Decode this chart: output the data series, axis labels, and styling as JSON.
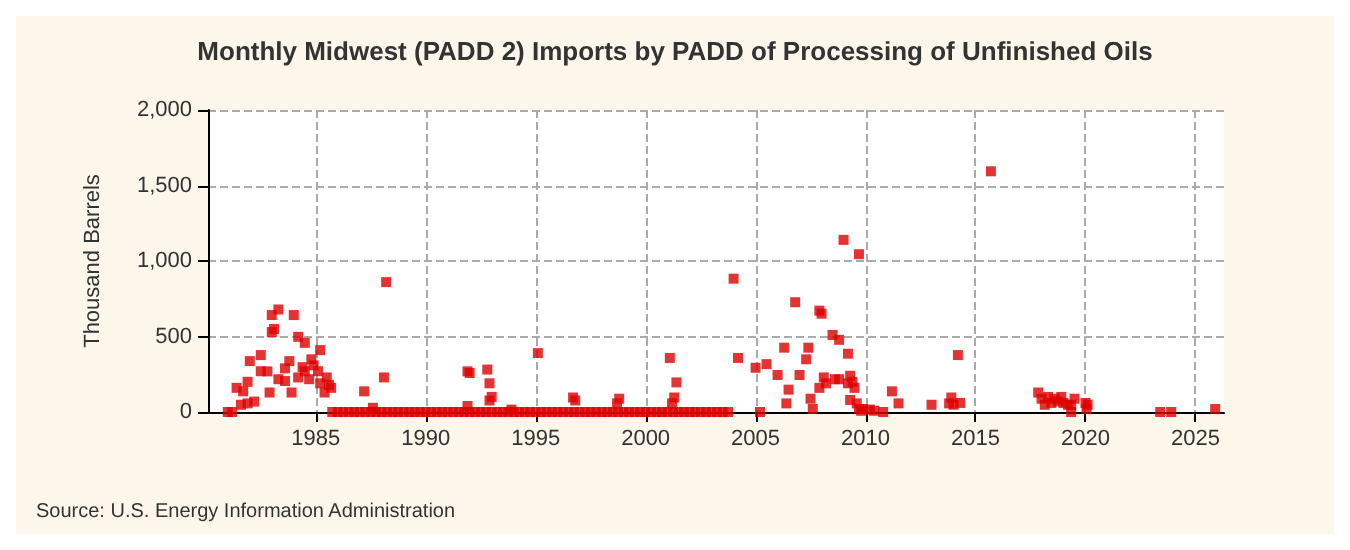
{
  "chart_data": {
    "type": "scatter",
    "title": "Monthly Midwest (PADD 2) Imports by PADD of Processing of Unfinished Oils",
    "ylabel": "Thousand Barrels",
    "annotations": [
      "Source: U.S. Energy Information Administration"
    ],
    "xlim": [
      1980.1,
      2026.3
    ],
    "xticks": [
      1985,
      1990,
      1995,
      2000,
      2005,
      2010,
      2015,
      2020,
      2025
    ],
    "ylim": [
      0,
      2000
    ],
    "yticks": [
      0,
      {
        "value": 500,
        "label": "500"
      },
      {
        "value": 1000,
        "label": "1,000"
      },
      {
        "value": 1500,
        "label": "1,500"
      },
      {
        "value": 2000,
        "label": "2,000"
      }
    ],
    "grid": true,
    "marker": "square",
    "series": [
      {
        "color": "#dd0000",
        "x": [
          1981.0,
          1981.2,
          1981.4,
          1981.6,
          1981.7,
          1981.9,
          1981.9,
          1982.0,
          1982.2,
          1982.5,
          1982.5,
          1982.8,
          1982.9,
          1983.0,
          1983.1,
          1983.0,
          1983.3,
          1983.3,
          1983.6,
          1983.6,
          1983.8,
          1983.9,
          1984.0,
          1984.2,
          1984.2,
          1984.4,
          1984.5,
          1984.5,
          1984.7,
          1984.8,
          1984.9,
          1985.1,
          1985.2,
          1985.2,
          1985.4,
          1985.5,
          1985.6,
          1985.7,
          1985.75,
          1986.0,
          1986.25,
          1986.5,
          1986.75,
          1987.0,
          1987.25,
          1987.5,
          1987.75,
          1988.0,
          1988.25,
          1988.5,
          1988.75,
          1989.0,
          1989.25,
          1989.5,
          1989.75,
          1990.0,
          1990.25,
          1990.5,
          1990.75,
          1991.0,
          1991.25,
          1991.5,
          1991.75,
          1992.0,
          1992.25,
          1992.5,
          1992.75,
          1993.0,
          1993.25,
          1993.5,
          1993.75,
          1994.0,
          1994.25,
          1994.5,
          1994.75,
          1995.0,
          1995.25,
          1995.5,
          1995.75,
          1996.0,
          1996.25,
          1996.5,
          1996.75,
          1997.0,
          1997.25,
          1997.5,
          1997.75,
          1998.0,
          1998.25,
          1998.5,
          1998.75,
          1999.0,
          1999.25,
          1999.5,
          1999.75,
          2000.0,
          2000.25,
          2000.5,
          2000.75,
          2001.0,
          2001.25,
          2001.5,
          2001.75,
          2002.0,
          2002.25,
          2002.5,
          2002.75,
          2003.0,
          2003.25,
          2003.5,
          2003.75,
          1987.2,
          1987.6,
          1988.1,
          1988.2,
          1991.9,
          1992.0,
          1991.9,
          1992.8,
          1992.9,
          1992.9,
          1993.0,
          1993.9,
          1995.1,
          1996.7,
          1996.8,
          1998.7,
          1998.8,
          2001.1,
          2001.2,
          2001.3,
          2001.4,
          2004.0,
          2004.2,
          2005.0,
          2005.2,
          2005.5,
          2006.0,
          2006.3,
          2006.4,
          2006.5,
          2006.8,
          2007.0,
          2007.3,
          2007.4,
          2007.5,
          2007.6,
          2007.9,
          2007.9,
          2008.0,
          2008.1,
          2008.2,
          2008.5,
          2008.6,
          2008.8,
          2008.8,
          2009.0,
          2009.2,
          2009.2,
          2009.3,
          2009.3,
          2009.4,
          2009.5,
          2009.6,
          2009.7,
          2009.7,
          2009.8,
          2009.9,
          2010.2,
          2010.4,
          2010.8,
          2011.2,
          2011.5,
          2013.0,
          2013.8,
          2013.9,
          2014.0,
          2014.2,
          2014.3,
          2015.7,
          2017.85,
          2018.0,
          2018.15,
          2018.3,
          2018.45,
          2018.6,
          2018.75,
          2018.9,
          2019.0,
          2019.2,
          2019.35,
          2019.5,
          2019.35,
          2020.0,
          2020.05,
          2020.1,
          2023.4,
          2023.9,
          2025.9
        ],
        "values": [
          0,
          0,
          160,
          48,
          137,
          200,
          57,
          337,
          69,
          377,
          270,
          269,
          129,
          530,
          550,
          642,
          679,
          217,
          289,
          205,
          337,
          129,
          642,
          498,
          229,
          297,
          458,
          270,
          217,
          349,
          309,
          270,
          410,
          190,
          129,
          229,
          180,
          160,
          0,
          0,
          0,
          0,
          0,
          0,
          0,
          0,
          0,
          0,
          0,
          0,
          0,
          0,
          0,
          0,
          0,
          0,
          0,
          0,
          0,
          0,
          0,
          0,
          0,
          0,
          0,
          0,
          0,
          0,
          0,
          0,
          0,
          0,
          0,
          0,
          0,
          0,
          0,
          0,
          0,
          0,
          0,
          0,
          0,
          0,
          0,
          0,
          0,
          0,
          0,
          0,
          0,
          0,
          0,
          0,
          0,
          0,
          0,
          0,
          0,
          0,
          0,
          0,
          0,
          0,
          0,
          0,
          0,
          0,
          0,
          0,
          0,
          137,
          28,
          229,
          860,
          269,
          258,
          40,
          281,
          190,
          76,
          100,
          16,
          390,
          96,
          76,
          57,
          88,
          358,
          57,
          96,
          196,
          883,
          358,
          293,
          0,
          317,
          245,
          426,
          57,
          148,
          727,
          245,
          349,
          426,
          88,
          20,
          160,
          671,
          651,
          229,
          190,
          510,
          217,
          217,
          478,
          1140,
          386,
          190,
          240,
          80,
          200,
          160,
          57,
          1045,
          20,
          8,
          20,
          16,
          8,
          0,
          137,
          57,
          48,
          57,
          96,
          48,
          377,
          60,
          1594,
          129,
          88,
          48,
          100,
          60,
          88,
          70,
          100,
          60,
          48,
          0,
          88,
          48,
          60,
          20,
          48,
          0,
          0,
          20
        ]
      }
    ]
  }
}
